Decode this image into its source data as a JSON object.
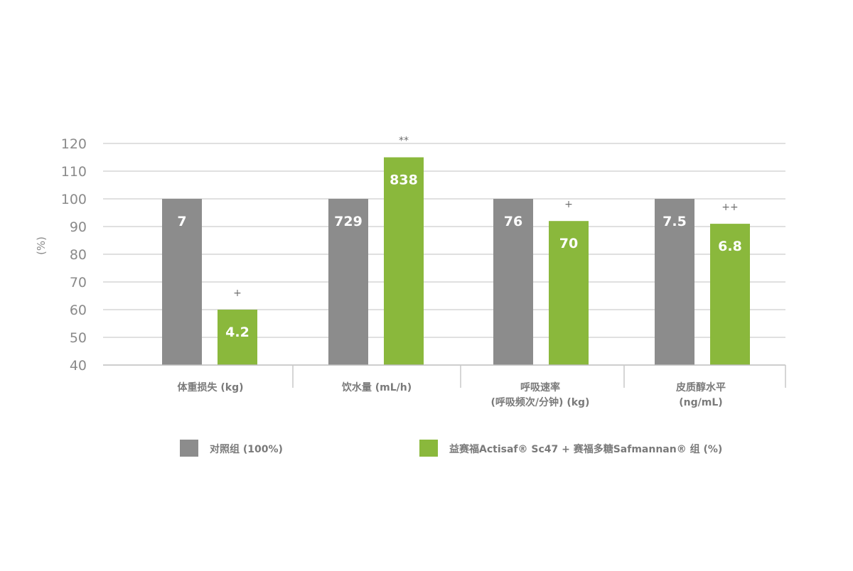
{
  "chart_data": {
    "type": "bar",
    "title": "",
    "xlabel": "",
    "ylabel": "(%)",
    "ylim": [
      40,
      120
    ],
    "yticks": [
      40,
      50,
      60,
      70,
      80,
      90,
      100,
      110,
      120
    ],
    "grid": true,
    "legend_position": "bottom",
    "categories": [
      [
        "体重损失 (kg)"
      ],
      [
        "饮水量 (mL/h)"
      ],
      [
        "呼吸速率",
        "(呼吸频次/分钟) (kg)"
      ],
      [
        "皮质醇水平",
        "(ng/mL)"
      ]
    ],
    "series": [
      {
        "name": "对照组 (100%)",
        "color": "#8c8c8c",
        "values": [
          100,
          100,
          100,
          100
        ],
        "labels": [
          "7",
          "729",
          "76",
          "7.5"
        ],
        "significance": [
          "",
          "",
          "",
          ""
        ]
      },
      {
        "name": "益赛福Actisaf® Sc47 + 赛福多糖Safmannan® 组 (%)",
        "color": "#8ab83c",
        "values": [
          60,
          115,
          92,
          91
        ],
        "labels": [
          "4.2",
          "838",
          "70",
          "6.8"
        ],
        "significance": [
          "+",
          "**",
          "+",
          "++"
        ]
      }
    ]
  }
}
